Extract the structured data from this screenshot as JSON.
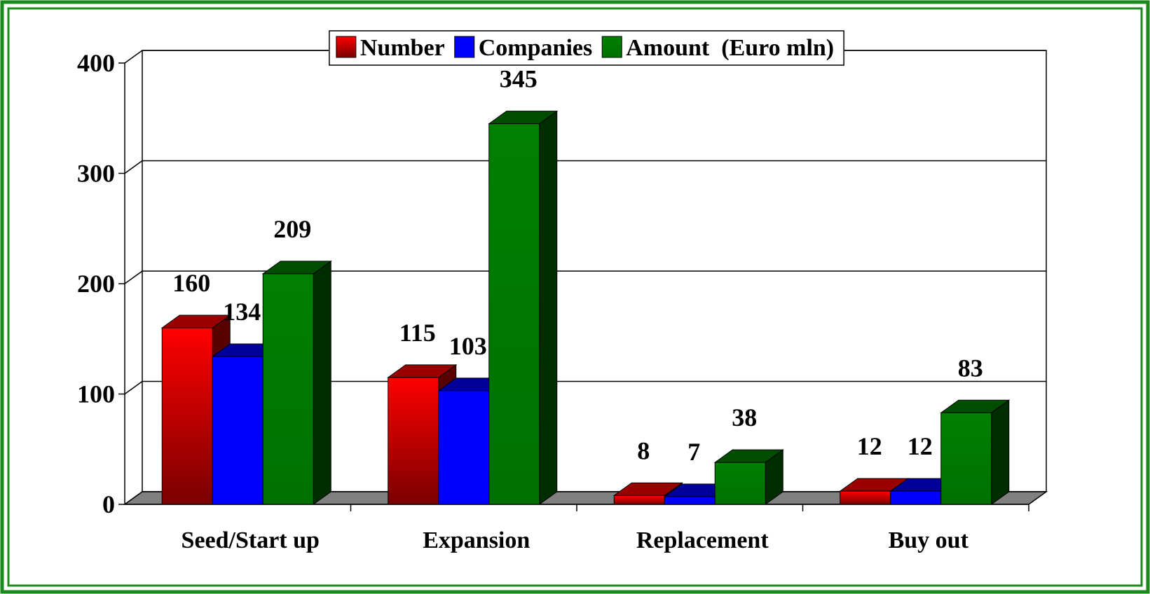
{
  "chart_data": {
    "type": "bar3d",
    "categories": [
      "Seed/Start up",
      "Expansion",
      "Replacement",
      "Buy out"
    ],
    "series": [
      {
        "name": "Number",
        "color": "#ff0000",
        "values": [
          160,
          115,
          8,
          12
        ]
      },
      {
        "name": "Companies",
        "color": "#0000ff",
        "values": [
          134,
          103,
          7,
          12
        ]
      },
      {
        "name": "Amount  (Euro mln)",
        "color": "#008000",
        "values": [
          209,
          345,
          38,
          83
        ]
      }
    ],
    "ylim": [
      0,
      400
    ],
    "yticks": [
      0,
      100,
      200,
      300,
      400
    ],
    "grid": true,
    "legend": "top"
  }
}
